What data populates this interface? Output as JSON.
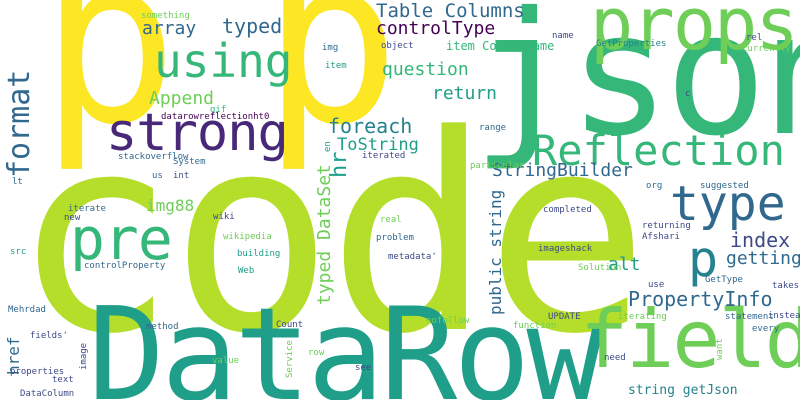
{
  "palette": {
    "yellow": "#fde725",
    "lime": "#b5de2b",
    "green": "#6ece58",
    "mint": "#35b779",
    "teal": "#1f9e89",
    "blue": "#26828e",
    "steel": "#31688e",
    "indigo": "#3e4989",
    "purple": "#482878",
    "violet": "#440154"
  },
  "words": {
    "code": "code",
    "datarow": "DataRow",
    "json": "json",
    "p_large": "p",
    "p_second": "p",
    "props": "props",
    "field": "field",
    "strong": "strong",
    "using": "using",
    "pre": "pre",
    "reflection": "Reflection",
    "type": "type",
    "format": "format",
    "p_small": "p",
    "table_columns": "Table Columns",
    "controltype": "controlType",
    "typed_top": "typed",
    "array": "array",
    "question": "question",
    "append": "Append",
    "return_word": "return",
    "foreach": "foreach",
    "tostring": "ToString",
    "hr": "hr",
    "stringbuilder": "StringBuilder",
    "index": "index",
    "getting": "getting",
    "propertyinfo": "PropertyInfo",
    "alt": "alt",
    "img88": "img88",
    "typed_dataset": "typed DataSet",
    "public_string": "public string",
    "href": "href",
    "string_getjson": "string getJson",
    "item_columnname": "item ColumnName",
    "something": "something",
    "img": "img",
    "object_word": "object",
    "name": "name",
    "getproperties": "GetProperties",
    "rel": "rel",
    "currently": "currently",
    "item": "item",
    "gif": "gif",
    "datarowreflection": "datarowreflectionht0",
    "c": "c",
    "range": "range",
    "stackoverflow": "stackoverflow",
    "system": "System",
    "en": "en",
    "iterated": "iterated",
    "particular": "particular",
    "lt": "lt",
    "us": "us",
    "int": "int",
    "org": "org",
    "suggested": "suggested",
    "iterate": "iterate",
    "new_word": "new",
    "completed": "completed",
    "wiki": "wiki",
    "real": "real",
    "returning": "returning",
    "afshari": "Afshari",
    "src": "src",
    "wikipedia": "wikipedia",
    "problem": "problem",
    "imageshack": "imageshack",
    "building": "building",
    "metadata": "metadata'",
    "web": "Web",
    "controlproperty": "controlProperty",
    "solution": "Solution",
    "use": "use",
    "gettype": "GetType",
    "takes": "takes",
    "mehrdad": "Mehrdad",
    "update": "UPDATE",
    "iterating": "iterating",
    "instead": "instead",
    "fields": "fields'",
    "method": "method",
    "count": "Count",
    "nofollow": "nofollow",
    "function_word": "function",
    "statement": "statement",
    "every": "every",
    "image": "image",
    "value": "value",
    "service": "Service",
    "row": "row",
    "need": "need",
    "want": "want",
    "datacolumn": "DataColumn",
    "properties": "properties",
    "text": "text",
    "see": "see"
  }
}
